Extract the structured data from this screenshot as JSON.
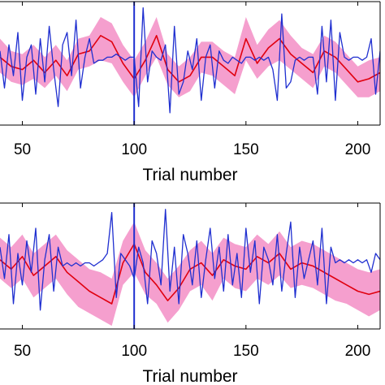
{
  "colors": {
    "band": "#f27fbe",
    "mean": "#e0000f",
    "signal": "#1f2fd0",
    "axis": "#000000",
    "background": "#ffffff"
  },
  "chart_data": [
    {
      "type": "line",
      "title": "",
      "xlabel": "Trial number",
      "ylabel": "",
      "xlim": [
        40,
        210
      ],
      "ylim": [
        -1,
        1
      ],
      "xticks": [
        50,
        100,
        150,
        200
      ],
      "xtick_labels": [
        "50",
        "100",
        "150",
        "200"
      ],
      "vlines": [
        100
      ],
      "grid": false,
      "series": [
        {
          "role": "band",
          "x": [
            40,
            45,
            50,
            55,
            60,
            65,
            70,
            75,
            80,
            85,
            90,
            95,
            100,
            105,
            110,
            115,
            120,
            125,
            130,
            135,
            140,
            145,
            150,
            155,
            160,
            165,
            170,
            175,
            180,
            185,
            190,
            195,
            200,
            205,
            210
          ],
          "lower": [
            -0.15,
            -0.3,
            -0.35,
            -0.25,
            -0.4,
            -0.2,
            -0.45,
            -0.1,
            -0.05,
            0.05,
            0.0,
            -0.3,
            -0.55,
            -0.2,
            0.1,
            -0.35,
            -0.55,
            -0.45,
            -0.15,
            -0.2,
            -0.35,
            -0.5,
            0.05,
            -0.25,
            -0.05,
            0.05,
            -0.1,
            -0.25,
            -0.4,
            -0.05,
            -0.15,
            -0.35,
            -0.55,
            -0.55,
            -0.45
          ],
          "upper": [
            0.4,
            0.2,
            0.15,
            0.3,
            0.1,
            0.3,
            0.05,
            0.4,
            0.45,
            0.75,
            0.65,
            0.3,
            0.05,
            0.35,
            0.75,
            0.15,
            -0.05,
            0.1,
            0.35,
            0.35,
            0.2,
            0.1,
            0.75,
            0.3,
            0.55,
            0.7,
            0.45,
            0.25,
            0.15,
            0.45,
            0.35,
            0.15,
            -0.05,
            0.05,
            0.1
          ]
        },
        {
          "role": "mean",
          "x": [
            40,
            45,
            50,
            55,
            60,
            65,
            70,
            75,
            80,
            85,
            90,
            95,
            100,
            105,
            110,
            115,
            120,
            125,
            130,
            135,
            140,
            145,
            150,
            155,
            160,
            165,
            170,
            175,
            180,
            185,
            190,
            195,
            200,
            205,
            210
          ],
          "y": [
            0.1,
            -0.05,
            -0.1,
            0.05,
            -0.15,
            0.05,
            -0.2,
            0.15,
            0.2,
            0.45,
            0.35,
            0.0,
            -0.25,
            0.05,
            0.45,
            -0.1,
            -0.3,
            -0.2,
            0.1,
            0.1,
            -0.05,
            -0.2,
            0.4,
            0.0,
            0.25,
            0.4,
            0.15,
            0.0,
            -0.15,
            0.2,
            0.1,
            -0.1,
            -0.3,
            -0.25,
            -0.15
          ]
        },
        {
          "role": "signal",
          "x": [
            40,
            42,
            44,
            46,
            48,
            50,
            52,
            54,
            56,
            58,
            60,
            62,
            64,
            66,
            68,
            70,
            72,
            74,
            76,
            78,
            80,
            82,
            84,
            86,
            88,
            90,
            92,
            94,
            96,
            98,
            100,
            102,
            104,
            106,
            108,
            110,
            112,
            114,
            116,
            118,
            120,
            122,
            124,
            126,
            128,
            130,
            132,
            134,
            136,
            138,
            140,
            142,
            144,
            146,
            148,
            150,
            152,
            154,
            156,
            158,
            160,
            162,
            164,
            166,
            168,
            170,
            172,
            174,
            176,
            178,
            180,
            182,
            184,
            186,
            188,
            190,
            192,
            194,
            196,
            198,
            200,
            202,
            204,
            206,
            208,
            210
          ],
          "y": [
            0.2,
            -0.4,
            0.3,
            -0.2,
            0.5,
            -0.6,
            0.1,
            0.3,
            -0.5,
            0.4,
            -0.3,
            0.6,
            -0.1,
            -0.7,
            0.3,
            0.5,
            -0.2,
            0.7,
            -0.4,
            0.1,
            0.4,
            0.0,
            0.05,
            0.05,
            0.1,
            0.1,
            0.15,
            0.1,
            0.05,
            0.1,
            0.1,
            -0.7,
            0.9,
            -0.3,
            0.2,
            0.1,
            0.05,
            0.3,
            -0.8,
            0.6,
            -0.5,
            -0.3,
            0.2,
            -0.1,
            0.4,
            -0.6,
            0.1,
            0.3,
            -0.4,
            0.2,
            0.05,
            0.0,
            0.1,
            0.05,
            0.0,
            0.1,
            0.1,
            0.05,
            0.1,
            0.05,
            0.1,
            -0.1,
            -0.6,
            0.8,
            -0.4,
            -0.3,
            0.05,
            0.1,
            0.05,
            0.1,
            0.1,
            -0.5,
            0.6,
            -0.3,
            0.7,
            -0.6,
            0.5,
            0.1,
            0.05,
            0.1,
            0.1,
            0.05,
            0.1,
            0.4,
            -0.5,
            0.2
          ]
        }
      ]
    },
    {
      "type": "line",
      "title": "",
      "xlabel": "Trial number",
      "ylabel": "",
      "xlim": [
        40,
        210
      ],
      "ylim": [
        -1,
        1
      ],
      "xticks": [
        50,
        100,
        150,
        200
      ],
      "xtick_labels": [
        "50",
        "100",
        "150",
        "200"
      ],
      "vlines": [
        100
      ],
      "grid": false,
      "series": [
        {
          "role": "band",
          "x": [
            40,
            45,
            50,
            55,
            60,
            65,
            70,
            75,
            80,
            85,
            90,
            95,
            100,
            105,
            110,
            115,
            120,
            125,
            130,
            135,
            140,
            145,
            150,
            155,
            160,
            165,
            170,
            175,
            180,
            185,
            190,
            195,
            200,
            205,
            210
          ],
          "lower": [
            -0.2,
            -0.35,
            -0.2,
            -0.5,
            -0.35,
            -0.2,
            -0.45,
            -0.65,
            -0.75,
            -0.85,
            -0.95,
            -0.3,
            -0.1,
            -0.45,
            -0.6,
            -0.9,
            -0.7,
            -0.4,
            -0.3,
            -0.55,
            -0.2,
            -0.35,
            -0.4,
            -0.2,
            -0.3,
            -0.15,
            -0.35,
            -0.3,
            -0.35,
            -0.45,
            -0.55,
            -0.6,
            -0.7,
            -0.8,
            -0.7
          ],
          "upper": [
            0.45,
            0.3,
            0.5,
            0.2,
            0.35,
            0.5,
            0.25,
            0.1,
            -0.05,
            -0.1,
            -0.2,
            0.4,
            0.7,
            0.25,
            0.05,
            -0.2,
            0.0,
            0.25,
            0.4,
            0.2,
            0.45,
            0.35,
            0.3,
            0.5,
            0.35,
            0.55,
            0.3,
            0.4,
            0.35,
            0.25,
            0.15,
            0.05,
            -0.05,
            -0.1,
            -0.05
          ]
        },
        {
          "role": "mean",
          "x": [
            40,
            45,
            50,
            55,
            60,
            65,
            70,
            75,
            80,
            85,
            90,
            95,
            100,
            105,
            110,
            115,
            120,
            125,
            130,
            135,
            140,
            145,
            150,
            155,
            160,
            165,
            170,
            175,
            180,
            185,
            190,
            195,
            200,
            205,
            210
          ],
          "y": [
            0.1,
            -0.05,
            0.15,
            -0.15,
            0.0,
            0.15,
            -0.1,
            -0.25,
            -0.4,
            -0.5,
            -0.6,
            0.05,
            0.35,
            -0.1,
            -0.3,
            -0.55,
            -0.35,
            -0.05,
            0.05,
            -0.15,
            0.1,
            0.0,
            -0.05,
            0.15,
            0.05,
            0.2,
            -0.05,
            0.05,
            0.0,
            -0.1,
            -0.2,
            -0.3,
            -0.4,
            -0.45,
            -0.4
          ]
        },
        {
          "role": "signal",
          "x": [
            40,
            42,
            44,
            46,
            48,
            50,
            52,
            54,
            56,
            58,
            60,
            62,
            64,
            66,
            68,
            70,
            72,
            74,
            76,
            78,
            80,
            82,
            84,
            86,
            88,
            90,
            92,
            94,
            96,
            98,
            100,
            102,
            104,
            106,
            108,
            110,
            112,
            114,
            116,
            118,
            120,
            122,
            124,
            126,
            128,
            130,
            132,
            134,
            136,
            138,
            140,
            142,
            144,
            146,
            148,
            150,
            152,
            154,
            156,
            158,
            160,
            162,
            164,
            166,
            168,
            170,
            172,
            174,
            176,
            178,
            180,
            182,
            184,
            186,
            188,
            190,
            192,
            194,
            196,
            198,
            200,
            202,
            204,
            206,
            208,
            210
          ],
          "y": [
            0.3,
            -0.2,
            0.5,
            -0.6,
            0.2,
            -0.3,
            0.4,
            -0.1,
            0.6,
            -0.7,
            0.1,
            0.5,
            -0.4,
            0.3,
            0.0,
            0.05,
            0.0,
            0.05,
            0.0,
            0.05,
            0.05,
            0.0,
            0.05,
            0.1,
            0.2,
            0.85,
            -0.5,
            0.2,
            0.1,
            0.0,
            -0.2,
            0.3,
            0.05,
            -0.6,
            0.4,
            0.2,
            -0.3,
            0.9,
            -0.4,
            0.3,
            -0.6,
            0.5,
            0.2,
            -0.3,
            0.4,
            -0.5,
            0.1,
            0.6,
            -0.2,
            0.3,
            -0.4,
            0.5,
            -0.3,
            0.2,
            -0.5,
            0.6,
            -0.1,
            0.4,
            -0.6,
            0.3,
            0.1,
            -0.3,
            0.5,
            -0.4,
            0.2,
            0.7,
            -0.5,
            0.3,
            -0.2,
            0.1,
            0.4,
            -0.3,
            0.6,
            -0.6,
            0.3,
            0.05,
            0.1,
            0.05,
            0.1,
            0.05,
            0.1,
            0.05,
            0.1,
            -0.1,
            0.2,
            0.1
          ]
        }
      ]
    }
  ]
}
